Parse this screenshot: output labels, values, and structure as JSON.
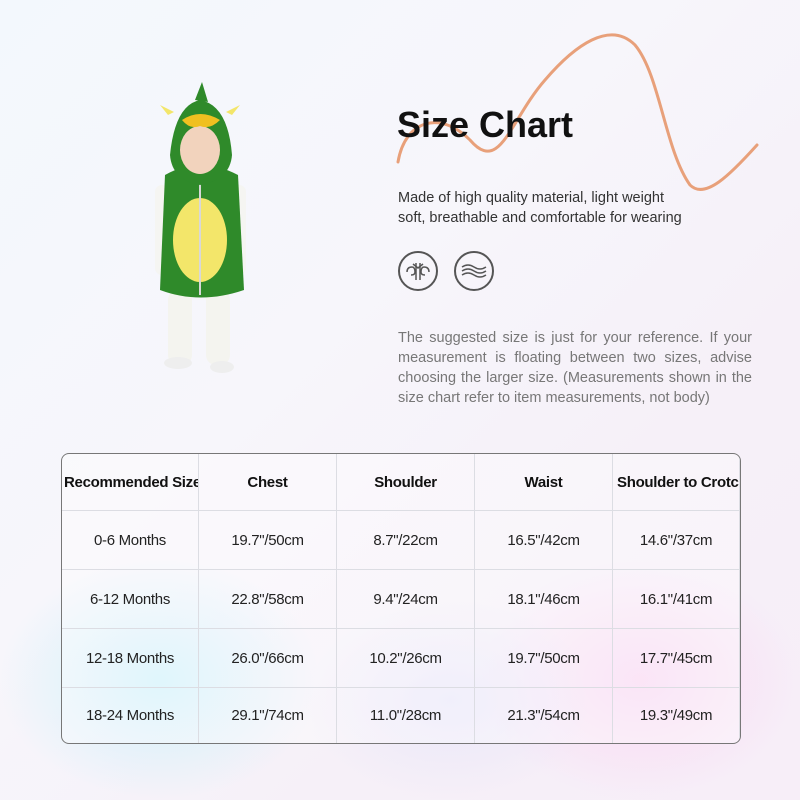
{
  "title": "Size Chart",
  "description": [
    "Made of high quality material, light weight",
    "soft, breathable and comfortable for wearing"
  ],
  "icons": [
    "breathable-fabric-icon",
    "soft-wave-icon"
  ],
  "note": "The suggested size is just for your reference. If your measurement is floating between two sizes, advise choosing the larger size. (Measurements shown in the size chart refer to item measurements, not body)",
  "colors": {
    "accent_curve": "#e8a07a",
    "costume_green": "#2f8a2a",
    "costume_belly": "#f3e66a"
  },
  "table": {
    "headers": [
      "Recommended Size",
      "Chest",
      "Shoulder",
      "Waist",
      "Shoulder to Crotch"
    ],
    "rows": [
      [
        "0-6 Months",
        "19.7\"/50cm",
        "8.7\"/22cm",
        "16.5\"/42cm",
        "14.6\"/37cm"
      ],
      [
        "6-12 Months",
        "22.8\"/58cm",
        "9.4\"/24cm",
        "18.1\"/46cm",
        "16.1\"/41cm"
      ],
      [
        "12-18 Months",
        "26.0\"/66cm",
        "10.2\"/26cm",
        "19.7\"/50cm",
        "17.7\"/45cm"
      ],
      [
        "18-24 Months",
        "29.1\"/74cm",
        "11.0\"/28cm",
        "21.3\"/54cm",
        "19.3\"/49cm"
      ]
    ]
  }
}
